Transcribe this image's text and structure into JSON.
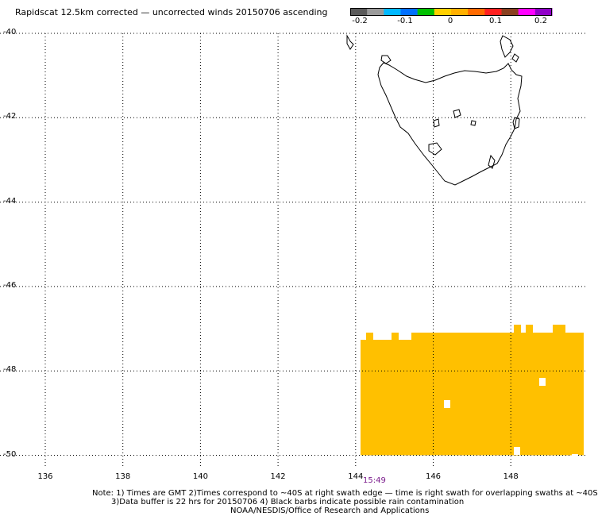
{
  "title": "Rapidscat 12.5km corrected — uncorrected winds 20150706 ascending",
  "colorbar": {
    "colors": [
      "#5a5a5a",
      "#9a9a9a",
      "#00b8ff",
      "#0070ff",
      "#00c000",
      "#ffd000",
      "#ffb000",
      "#ff6a00",
      "#ff2020",
      "#8a4020",
      "#ff00ff",
      "#9000c8"
    ],
    "tick_labels": [
      "-0.2",
      "-0.1",
      "0",
      "0.1",
      "0.2"
    ],
    "tick_values": [
      -0.2,
      -0.1,
      0,
      0.1,
      0.2
    ],
    "range": [
      -0.2,
      0.2
    ]
  },
  "axes": {
    "lat_labels": [
      "-40",
      "-42",
      "-44",
      "-46",
      "-48",
      "-50"
    ],
    "lon_labels": [
      "136",
      "138",
      "140",
      "142",
      "144",
      "146",
      "148"
    ],
    "lat_range": [
      -40,
      -50
    ],
    "lon_range": [
      135,
      150
    ],
    "grid": true
  },
  "swath": {
    "time_label": "15:49",
    "fill_color": "#ffc000",
    "extent": {
      "lon": [
        144.2,
        150
      ],
      "lat": [
        -47.2,
        -50
      ]
    },
    "missing_cells_color": "#ffffff"
  },
  "notes": [
    "Note: 1) Times are GMT 2)Times correspond to ~40S at right swath edge — time is right swath for overlapping swaths at ~40S",
    "3)Data buffer is 22 hrs for 20150706 4) Black barbs indicate possible rain contamination",
    "NOAA/NESDIS/Office of Research and Applications"
  ]
}
